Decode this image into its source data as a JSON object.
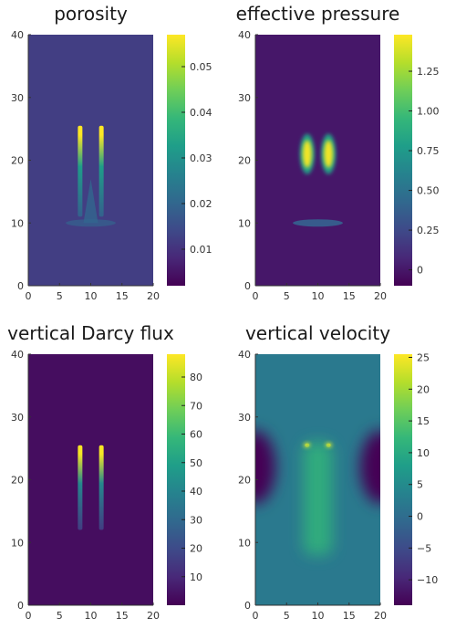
{
  "chart_data": [
    {
      "type": "heatmap",
      "title": "porosity",
      "xlim": [
        0,
        20
      ],
      "ylim": [
        0,
        40
      ],
      "xticks": [
        "0",
        "5",
        "10",
        "15",
        "20"
      ],
      "yticks": [
        "0",
        "10",
        "20",
        "30",
        "40"
      ],
      "colorbar": {
        "range": [
          0.002,
          0.057
        ],
        "ticks": [
          "0.01",
          "0.02",
          "0.03",
          "0.04",
          "0.05"
        ],
        "tick_values": [
          0.01,
          0.02,
          0.03,
          0.04,
          0.05
        ],
        "colormap": "viridis"
      },
      "background_value": 0.012,
      "features": [
        {
          "kind": "vertical-streak",
          "x": 8.3,
          "y_range": [
            11,
            25.5
          ],
          "peak_value": 0.057
        },
        {
          "kind": "vertical-streak",
          "x": 11.7,
          "y_range": [
            11,
            25.5
          ],
          "peak_value": 0.057
        },
        {
          "kind": "horizontal-band",
          "x_range": [
            6,
            14
          ],
          "y": 10,
          "value": 0.017
        },
        {
          "kind": "central-cone",
          "x": 10,
          "y_range": [
            10,
            17
          ],
          "value": 0.02
        }
      ]
    },
    {
      "type": "heatmap",
      "title": "effective pressure",
      "xlim": [
        0,
        20
      ],
      "ylim": [
        0,
        40
      ],
      "xticks": [
        "0",
        "5",
        "10",
        "15",
        "20"
      ],
      "yticks": [
        "0",
        "10",
        "20",
        "30",
        "40"
      ],
      "colorbar": {
        "range": [
          -0.1,
          1.48
        ],
        "ticks": [
          "0",
          "0.25",
          "0.50",
          "0.75",
          "1.00",
          "1.25"
        ],
        "tick_values": [
          0,
          0.25,
          0.5,
          0.75,
          1.0,
          1.25
        ],
        "colormap": "viridis"
      },
      "background_value": 0.0,
      "features": [
        {
          "kind": "blob",
          "x": 8.3,
          "y": 21,
          "peak_value": 1.45
        },
        {
          "kind": "blob",
          "x": 11.7,
          "y": 21,
          "peak_value": 1.45
        },
        {
          "kind": "horizontal-band",
          "x_range": [
            6,
            14
          ],
          "y": 10,
          "value": 0.35
        }
      ]
    },
    {
      "type": "heatmap",
      "title": "vertical Darcy flux",
      "xlim": [
        0,
        20
      ],
      "ylim": [
        0,
        40
      ],
      "xticks": [
        "0",
        "5",
        "10",
        "15",
        "20"
      ],
      "yticks": [
        "0",
        "10",
        "20",
        "30",
        "40"
      ],
      "colorbar": {
        "range": [
          0,
          88
        ],
        "ticks": [
          "10",
          "20",
          "30",
          "40",
          "50",
          "60",
          "70",
          "80"
        ],
        "tick_values": [
          10,
          20,
          30,
          40,
          50,
          60,
          70,
          80
        ],
        "colormap": "viridis"
      },
      "background_value": 3,
      "features": [
        {
          "kind": "vertical-streak",
          "x": 8.3,
          "y_range": [
            12,
            25.5
          ],
          "peak_value": 87
        },
        {
          "kind": "vertical-streak",
          "x": 11.7,
          "y_range": [
            12,
            25.5
          ],
          "peak_value": 87
        }
      ]
    },
    {
      "type": "heatmap",
      "title": "vertical velocity",
      "xlim": [
        0,
        20
      ],
      "ylim": [
        0,
        40
      ],
      "xticks": [
        "0",
        "5",
        "10",
        "15",
        "20"
      ],
      "yticks": [
        "0",
        "10",
        "20",
        "30",
        "40"
      ],
      "colorbar": {
        "range": [
          -14,
          25.5
        ],
        "ticks": [
          "−10",
          "−5",
          "0",
          "5",
          "10",
          "15",
          "20",
          "25"
        ],
        "tick_values": [
          -10,
          -5,
          0,
          5,
          10,
          15,
          20,
          25
        ],
        "colormap": "viridis"
      },
      "background_value": 2,
      "features": [
        {
          "kind": "side-low",
          "x": 0,
          "y": 22,
          "value": -14
        },
        {
          "kind": "side-low",
          "x": 20,
          "y": 22,
          "value": -14
        },
        {
          "kind": "hot-spot",
          "x": 8.3,
          "y": 25.5,
          "peak_value": 25
        },
        {
          "kind": "hot-spot",
          "x": 11.7,
          "y": 25.5,
          "peak_value": 25
        },
        {
          "kind": "central-column",
          "x": 10,
          "y_range": [
            8,
            26
          ],
          "value": 12
        }
      ]
    }
  ]
}
